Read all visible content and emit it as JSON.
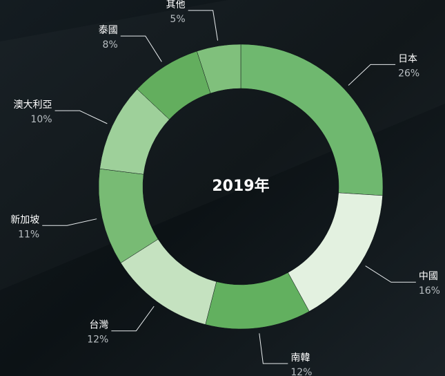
{
  "chart_data": {
    "type": "donut",
    "title": "2019年",
    "categories": [
      "日本",
      "中國",
      "南韓",
      "台灣",
      "新加坡",
      "澳大利亞",
      "泰國",
      "其他"
    ],
    "values": [
      26,
      16,
      12,
      12,
      11,
      10,
      8,
      5
    ],
    "value_labels": [
      "26%",
      "16%",
      "12%",
      "12%",
      "11%",
      "10%",
      "8%",
      "5%"
    ],
    "colors": [
      "#6fb86f",
      "#e3f1e0",
      "#62b05f",
      "#c5e2c0",
      "#78bb74",
      "#9ed09a",
      "#63ae5e",
      "#80c07c"
    ]
  }
}
